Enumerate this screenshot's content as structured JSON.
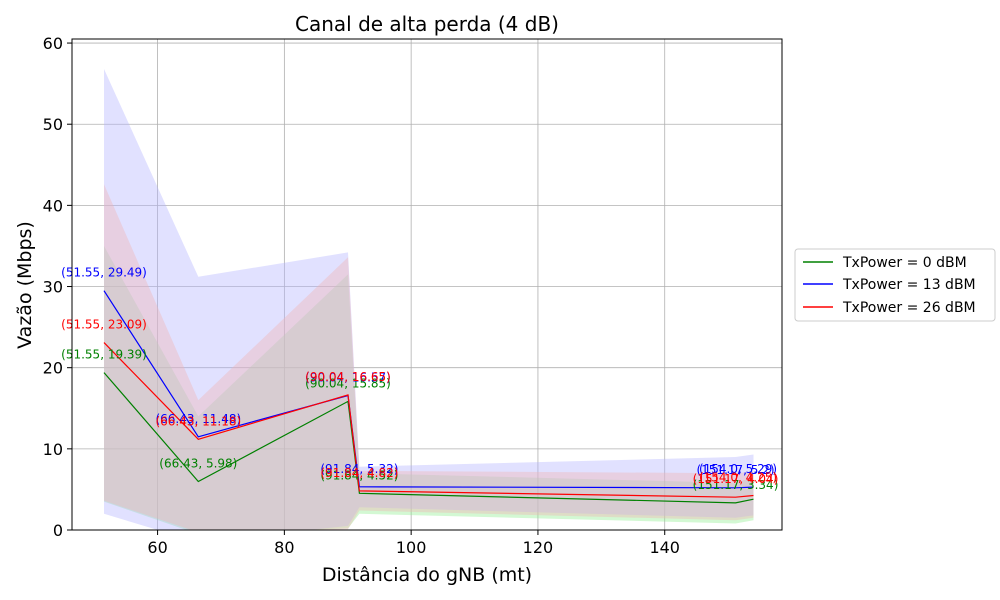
{
  "chart_data": {
    "type": "line",
    "title": "Canal de alta perda (4 dB)",
    "xlabel": "Distância do gNB (mt)",
    "ylabel": "Vazão (Mbps)",
    "xlim": [
      46.5,
      158.5
    ],
    "ylim": [
      0,
      60.5
    ],
    "xticks": [
      60,
      80,
      100,
      120,
      140
    ],
    "yticks": [
      0,
      10,
      20,
      30,
      40,
      50,
      60
    ],
    "grid": true,
    "legend_position": "right",
    "series": [
      {
        "name": "TxPower = 0 dBM",
        "color": "#008000",
        "band_color": "#90ee90",
        "x": [
          51.55,
          66.43,
          90.04,
          91.84,
          151.17,
          154.0
        ],
        "y": [
          19.39,
          5.98,
          15.85,
          4.52,
          3.34,
          3.8
        ],
        "lower": [
          3.5,
          -0.5,
          0.2,
          2.0,
          0.8,
          1.2
        ],
        "upper": [
          35.0,
          14.0,
          31.5,
          7.0,
          5.8,
          6.5
        ],
        "labels": [
          "(51.55, 19.39)",
          "(66.43, 5.98)",
          "(90.04, 15.85)",
          "(91.84, 4.52)",
          "(151.17, 3.34)"
        ]
      },
      {
        "name": "TxPower = 13 dBM",
        "color": "#0000ff",
        "band_color": "#b4b4ff",
        "x": [
          51.55,
          66.43,
          90.04,
          91.84,
          151.17,
          154.0
        ],
        "y": [
          29.49,
          11.48,
          16.57,
          5.32,
          5.2,
          5.29
        ],
        "lower": [
          2.0,
          -1.5,
          0.5,
          2.8,
          1.5,
          1.8
        ],
        "upper": [
          56.8,
          31.2,
          34.2,
          7.8,
          9.0,
          9.3
        ],
        "labels": [
          "(51.55, 29.49)",
          "(66.43, 11.48)",
          "(90.04, 16.57)",
          "(91.84, 5.32)",
          "(151.17, 5.2)",
          "(154.0, 5.29)"
        ]
      },
      {
        "name": "TxPower = 26 dBM",
        "color": "#ff0000",
        "band_color": "#f0b4b4",
        "x": [
          51.55,
          66.43,
          90.04,
          91.84,
          151.17,
          154.0
        ],
        "y": [
          23.09,
          11.18,
          16.65,
          4.82,
          4.04,
          4.25
        ],
        "lower": [
          3.6,
          -0.3,
          0.1,
          2.4,
          1.2,
          1.5
        ],
        "upper": [
          42.6,
          16.0,
          33.6,
          7.3,
          7.0,
          7.2
        ],
        "labels": [
          "(51.55, 23.09)",
          "(66.43, 11.18)",
          "(90.04, 16.65)",
          "(91.84, 4.82)",
          "(151.17, 4.04)",
          "(154.0, 4.25)"
        ]
      }
    ]
  }
}
